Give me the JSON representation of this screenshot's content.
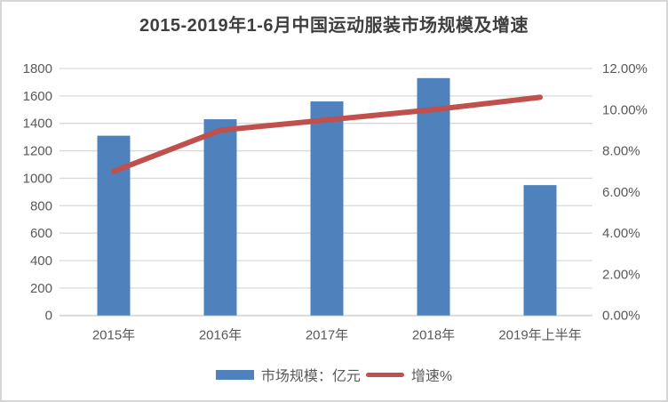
{
  "chart_data": {
    "type": "bar+line",
    "title": "2015-2019年1-6月中国运动服装市场规模及增速",
    "categories": [
      "2015年",
      "2016年",
      "2017年",
      "2018年",
      "2019年上半年"
    ],
    "series": [
      {
        "name": "市场规模：亿元",
        "type": "bar",
        "axis": "left",
        "values": [
          1310,
          1430,
          1560,
          1730,
          950
        ],
        "color": "#4F81BD"
      },
      {
        "name": "增速%",
        "type": "line",
        "axis": "right",
        "values": [
          7.0,
          9.0,
          9.5,
          10.0,
          10.6
        ],
        "color": "#C0504D"
      }
    ],
    "left_axis": {
      "min": 0,
      "max": 1800,
      "step": 200,
      "tick_labels": [
        "0",
        "200",
        "400",
        "600",
        "800",
        "1000",
        "1200",
        "1400",
        "1600",
        "1800"
      ]
    },
    "right_axis": {
      "min": 0,
      "max": 12,
      "step": 2,
      "tick_labels": [
        "0.00%",
        "2.00%",
        "4.00%",
        "6.00%",
        "8.00%",
        "10.00%",
        "12.00%"
      ]
    },
    "grid": true,
    "legend_position": "bottom"
  },
  "colors": {
    "bar": "#4F81BD",
    "line": "#C0504D",
    "gridline": "#D9D9D9",
    "axis_line": "#D9D9D9",
    "tick_text": "#595959",
    "title_text": "#3F3F3F",
    "background": "#FFFFFF"
  }
}
